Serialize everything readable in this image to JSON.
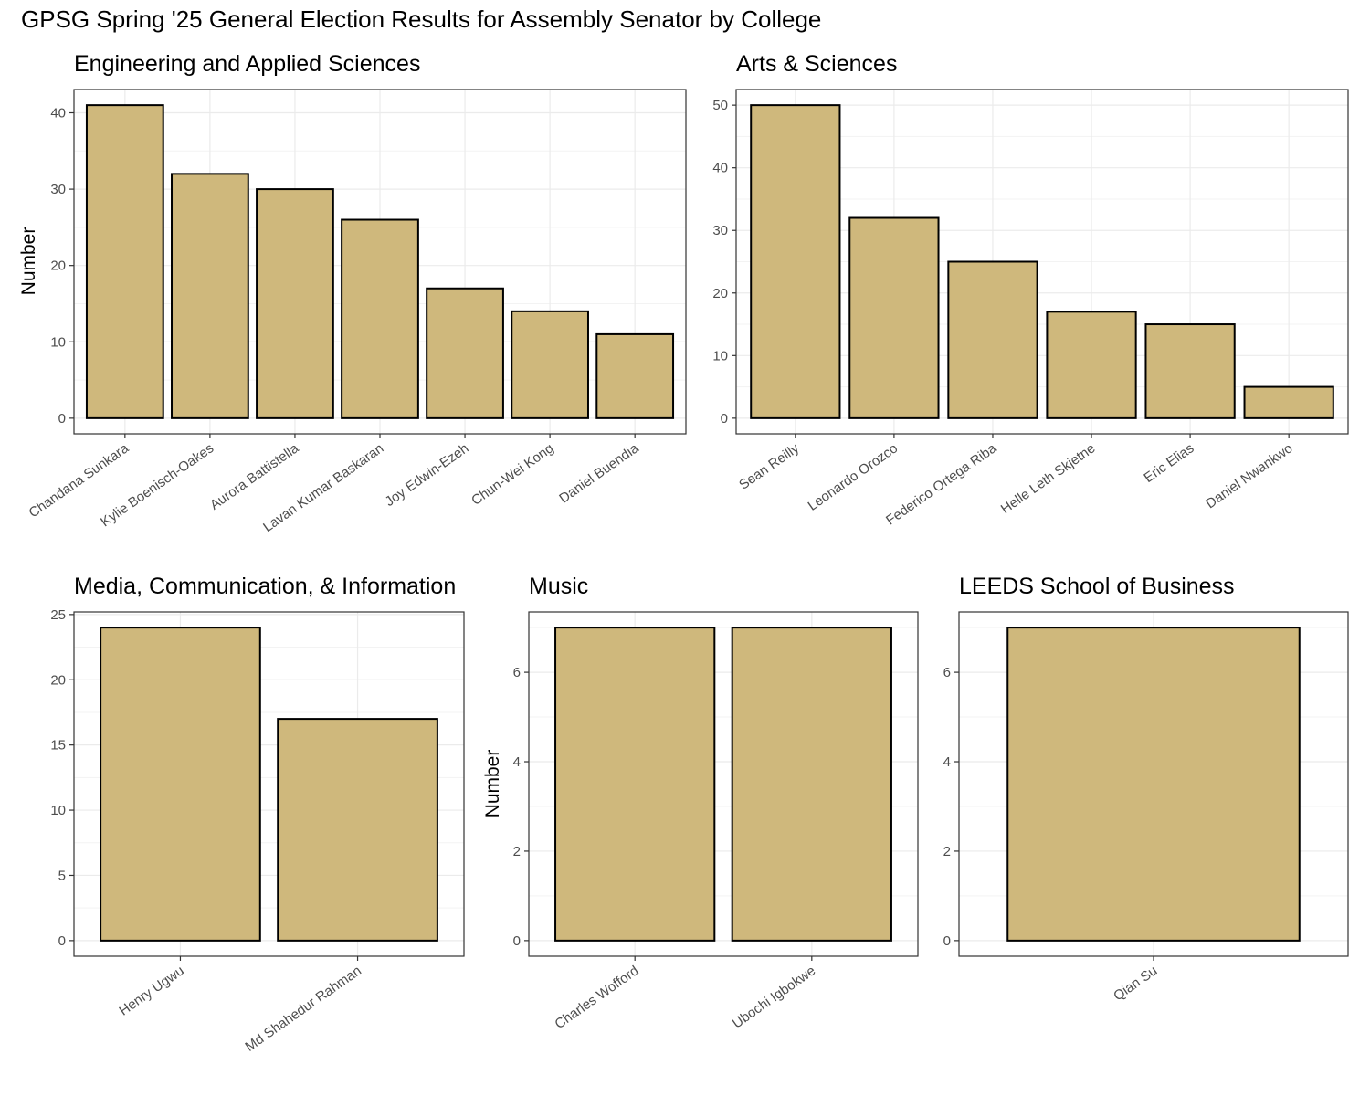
{
  "title": "GPSG Spring '25 General Election Results for Assembly Senator by College",
  "colors": {
    "bar_fill": "#CFB87C",
    "bar_stroke": "#000000",
    "grid_major": "#EBEBEB",
    "grid_minor": "#F3F3F3",
    "panel_border": "#333333"
  },
  "chart_data": [
    {
      "type": "bar",
      "title": "Engineering and Applied Sciences",
      "ylabel": "Number",
      "categories": [
        "Chandana Sunkara",
        "Kylie Boenisch-Oakes",
        "Aurora Battistella",
        "Lavan Kumar Baskaran",
        "Joy Edwin-Ezeh",
        "Chun-Wei Kong",
        "Daniel Buendia"
      ],
      "values": [
        41,
        32,
        30,
        26,
        17,
        14,
        11
      ],
      "ylim": [
        -2.05,
        43.05
      ],
      "yticks": [
        0,
        10,
        20,
        30,
        40
      ],
      "grid": true
    },
    {
      "type": "bar",
      "title": "Arts & Sciences",
      "ylabel": "",
      "categories": [
        "Sean Reilly",
        "Leonardo Orozco",
        "Federico Ortega Riba",
        "Helle Leth Skjetne",
        "Eric Elias",
        "Daniel Nwankwo"
      ],
      "values": [
        50,
        32,
        25,
        17,
        15,
        5
      ],
      "ylim": [
        -2.5,
        52.5
      ],
      "yticks": [
        0,
        10,
        20,
        30,
        40,
        50
      ],
      "grid": true
    },
    {
      "type": "bar",
      "title": "Media, Communication, & Information",
      "ylabel": "",
      "categories": [
        "Henry Ugwu",
        "Md Shahedur Rahman"
      ],
      "values": [
        24,
        17
      ],
      "ylim": [
        -1.2,
        25.2
      ],
      "yticks": [
        0,
        5,
        10,
        15,
        20,
        25
      ],
      "grid": true
    },
    {
      "type": "bar",
      "title": "Music",
      "ylabel": "Number",
      "categories": [
        "Charles Wofford",
        "Ubochi Igbokwe"
      ],
      "values": [
        7,
        7
      ],
      "ylim": [
        -0.35,
        7.35
      ],
      "yticks": [
        0,
        2,
        4,
        6
      ],
      "grid": true
    },
    {
      "type": "bar",
      "title": "LEEDS School of Business",
      "ylabel": "",
      "categories": [
        "Qian Su"
      ],
      "values": [
        7
      ],
      "ylim": [
        -0.35,
        7.35
      ],
      "yticks": [
        0,
        2,
        4,
        6
      ],
      "grid": true
    }
  ]
}
